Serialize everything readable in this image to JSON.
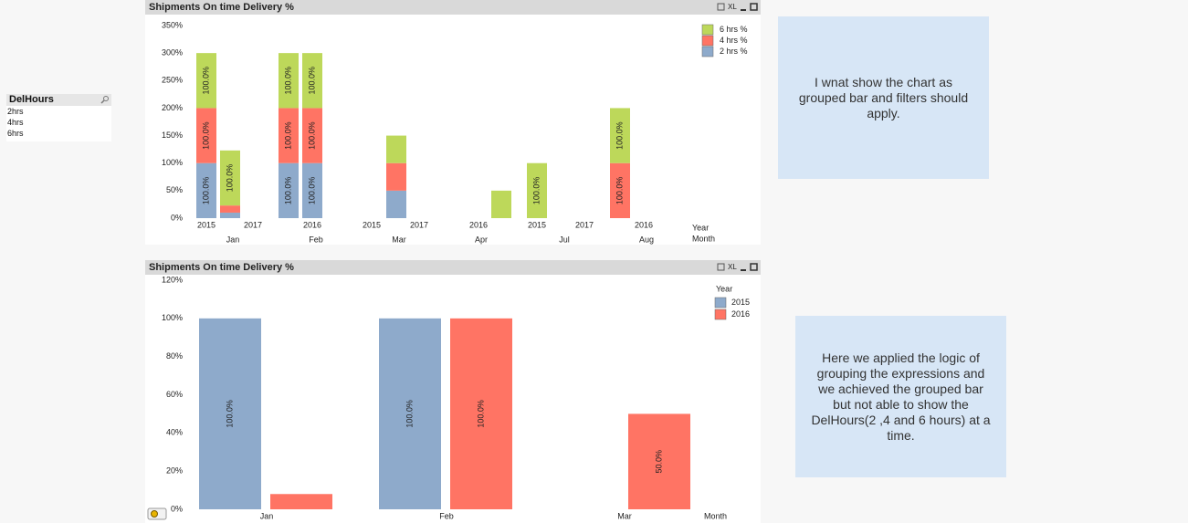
{
  "chart_data": [
    {
      "type": "stacked_bar",
      "title": "Shipments On time Delivery %",
      "categories": [
        null,
        null,
        null,
        null,
        null,
        null,
        null,
        null
      ],
      "series": [
        {
          "name": "2 hrs %",
          "color": "#8eaacb",
          "values": [
            100,
            10,
            100,
            100,
            50,
            null,
            null,
            null
          ],
          "value_labels": [
            "100.0%",
            null,
            "100.0%",
            "100.0%",
            null,
            null,
            null,
            null
          ]
        },
        {
          "name": "4 hrs %",
          "color": "#ff7464",
          "values": [
            100,
            13,
            100,
            100,
            50,
            null,
            null,
            100
          ],
          "value_labels": [
            "100.0%",
            null,
            "100.0%",
            "100.0%",
            null,
            null,
            null,
            "100.0%"
          ]
        },
        {
          "name": "6 hrs %",
          "color": "#bdd85a",
          "values": [
            100,
            100,
            100,
            100,
            50,
            50,
            100,
            100
          ],
          "value_labels": [
            "100.0%",
            "100.0%",
            "100.0%",
            "100.0%",
            null,
            null,
            "100.0%",
            "100.0%"
          ]
        }
      ],
      "year_labels": [
        "2015",
        "2017",
        "2016",
        "2015",
        "2017",
        "2016",
        "2015",
        "2017",
        "2016"
      ],
      "month_labels": [
        "Jan",
        "Feb",
        "Mar",
        "Apr",
        "Jul",
        "Aug"
      ],
      "x_titles": [
        "Year",
        "Month"
      ],
      "ylim": [
        0,
        350
      ],
      "yticks": [
        {
          "value": 0,
          "label": "0%"
        },
        {
          "value": 50,
          "label": "50%"
        },
        {
          "value": 100,
          "label": "100%"
        },
        {
          "value": 150,
          "label": "150%"
        },
        {
          "value": 200,
          "label": "200%"
        },
        {
          "value": 250,
          "label": "250%"
        },
        {
          "value": 300,
          "label": "300%"
        },
        {
          "value": 350,
          "label": "350%"
        }
      ],
      "grid": false
    },
    {
      "type": "bar",
      "title": "Shipments On time Delivery %",
      "categories": [
        "Jan",
        "Feb",
        "Mar"
      ],
      "legend_title": "Year",
      "series": [
        {
          "name": "2015",
          "color": "#8eaacb",
          "values": [
            100,
            100,
            null
          ],
          "value_labels": [
            "100.0%",
            "100.0%",
            null
          ]
        },
        {
          "name": "2016",
          "color": "#ff7464",
          "values": [
            8,
            100,
            50
          ],
          "value_labels": [
            null,
            "100.0%",
            "50.0%"
          ]
        }
      ],
      "x_title": "Month",
      "ylim": [
        0,
        120
      ],
      "yticks": [
        {
          "value": 0,
          "label": "0%"
        },
        {
          "value": 20,
          "label": "20%"
        },
        {
          "value": 40,
          "label": "40%"
        },
        {
          "value": 60,
          "label": "60%"
        },
        {
          "value": 80,
          "label": "80%"
        },
        {
          "value": 100,
          "label": "100%"
        },
        {
          "value": 120,
          "label": "120%"
        }
      ],
      "grid": false
    }
  ],
  "toolbar": {
    "xl": "XL"
  },
  "listbox": {
    "title": "DelHours",
    "items": [
      "2hrs",
      "4hrs",
      "6hrs"
    ]
  },
  "notes": [
    "I wnat show the chart as grouped bar and filters should apply.",
    "Here we applied the logic of grouping the expressions and we achieved the grouped bar but not able to show the DelHours(2 ,4 and 6 hours) at a time."
  ]
}
